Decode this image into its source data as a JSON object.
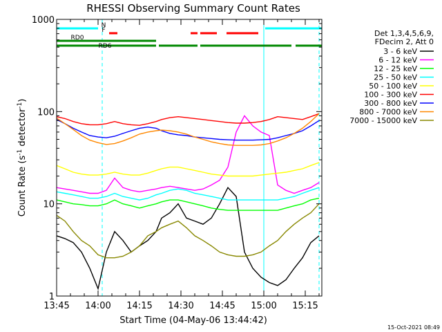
{
  "chart_data": {
    "type": "line",
    "title": "RHESSI Observing Summary Count Rates",
    "xlabel": "Start Time (04-May-06 13:44:42)",
    "ylabel": "Count Rate (s",
    "ylabel_sup": "-1",
    "ylabel_mid": " detector",
    "ylabel_sup2": "-1",
    "ylabel_end": ")",
    "x_unit": "minutes after 13:45",
    "xlim": [
      0,
      96
    ],
    "ylim": [
      1,
      1000
    ],
    "yscale": "log",
    "x_ticks": [
      {
        "v": 0,
        "label": "13:45"
      },
      {
        "v": 15,
        "label": "14:00"
      },
      {
        "v": 30,
        "label": "14:15"
      },
      {
        "v": 45,
        "label": "14:30"
      },
      {
        "v": 60,
        "label": "14:45"
      },
      {
        "v": 75,
        "label": "15:00"
      },
      {
        "v": 90,
        "label": "15:15"
      }
    ],
    "y_ticks": [
      {
        "v": 1,
        "label": "1"
      },
      {
        "v": 10,
        "label": "10"
      },
      {
        "v": 100,
        "label": "100"
      },
      {
        "v": 1000,
        "label": "1000"
      }
    ],
    "legend_title": [
      "Det 1,3,4,5,6,9,",
      "FDecim 2, Att 0"
    ],
    "legend_position": "right",
    "series": [
      {
        "name": "3 - 6 keV",
        "color": "#000000",
        "x": [
          0,
          3,
          6,
          9,
          12,
          15,
          18,
          21,
          24,
          27,
          30,
          33,
          36,
          38,
          41,
          44,
          47,
          50,
          53,
          56,
          59,
          62,
          65,
          68,
          71,
          74,
          77,
          80,
          83,
          86,
          89,
          92,
          95
        ],
        "y": [
          4.5,
          4.2,
          3.8,
          3,
          2,
          1.2,
          3,
          5,
          4,
          3,
          3.5,
          4,
          5,
          7,
          8,
          10,
          7,
          6.5,
          6,
          7,
          10,
          15,
          12,
          3,
          2,
          1.6,
          1.4,
          1.3,
          1.5,
          2,
          2.6,
          3.8,
          4.5
        ]
      },
      {
        "name": "6 - 12 keV",
        "color": "#ff00ff",
        "x": [
          0,
          3,
          6,
          9,
          12,
          15,
          18,
          21,
          24,
          27,
          30,
          33,
          36,
          38,
          41,
          44,
          47,
          50,
          53,
          56,
          59,
          62,
          65,
          68,
          71,
          74,
          77,
          80,
          83,
          86,
          89,
          92,
          95
        ],
        "y": [
          15,
          14.5,
          14,
          13.5,
          13,
          13,
          14,
          19,
          15,
          14,
          13.5,
          14,
          14.5,
          15,
          15.5,
          15,
          14.5,
          14,
          14.5,
          16,
          18,
          25,
          60,
          90,
          70,
          60,
          55,
          16,
          14,
          13,
          14,
          15,
          17
        ]
      },
      {
        "name": "12 - 25 keV",
        "color": "#00ff00",
        "x": [
          0,
          3,
          6,
          9,
          12,
          15,
          18,
          21,
          24,
          27,
          30,
          33,
          36,
          38,
          41,
          44,
          47,
          50,
          53,
          56,
          59,
          62,
          65,
          68,
          71,
          74,
          77,
          80,
          83,
          86,
          89,
          92,
          95
        ],
        "y": [
          11,
          10.5,
          10,
          9.8,
          9.5,
          9.5,
          10,
          11,
          10,
          9.5,
          9,
          9.5,
          10,
          10.5,
          11,
          11,
          10.5,
          10,
          9.5,
          9,
          8.7,
          8.5,
          8.5,
          8.5,
          8.5,
          8.5,
          8.5,
          8.5,
          9,
          9.5,
          10,
          11,
          11.5
        ]
      },
      {
        "name": "25 - 50 keV",
        "color": "#00ffff",
        "x": [
          0,
          3,
          6,
          9,
          12,
          15,
          18,
          21,
          24,
          27,
          30,
          33,
          36,
          38,
          41,
          44,
          47,
          50,
          53,
          56,
          59,
          62,
          65,
          68,
          71,
          74,
          77,
          80,
          83,
          86,
          89,
          92,
          95
        ],
        "y": [
          13.5,
          13,
          12.5,
          12,
          11.5,
          11.5,
          12,
          13,
          12,
          11.5,
          11,
          11.5,
          12.5,
          13,
          14,
          14.5,
          14,
          13,
          12.5,
          12,
          11.5,
          11,
          11,
          11,
          11,
          11,
          11,
          11,
          11.5,
          12,
          13,
          14,
          15
        ]
      },
      {
        "name": "50 - 100 keV",
        "color": "#ffff00",
        "x": [
          0,
          3,
          6,
          9,
          12,
          15,
          18,
          21,
          24,
          27,
          30,
          33,
          36,
          38,
          41,
          44,
          47,
          50,
          53,
          56,
          59,
          62,
          65,
          68,
          71,
          74,
          77,
          80,
          83,
          86,
          89,
          92,
          95
        ],
        "y": [
          26,
          24,
          22,
          21,
          20.5,
          20.5,
          21,
          22,
          21,
          20.5,
          20.5,
          21.5,
          23,
          24,
          25,
          25,
          24,
          23,
          22,
          21,
          20.5,
          20,
          20,
          20,
          20,
          20.5,
          21,
          21.5,
          22,
          23,
          24,
          26,
          28
        ]
      },
      {
        "name": "100 - 300 keV",
        "color": "#ff0000",
        "x": [
          0,
          3,
          6,
          9,
          12,
          15,
          18,
          21,
          24,
          27,
          30,
          33,
          36,
          38,
          41,
          44,
          47,
          50,
          53,
          56,
          59,
          62,
          65,
          68,
          71,
          74,
          77,
          80,
          83,
          86,
          89,
          92,
          95
        ],
        "y": [
          88,
          84,
          78,
          74,
          72,
          72,
          74,
          78,
          74,
          72,
          71,
          74,
          78,
          82,
          86,
          88,
          86,
          84,
          82,
          80,
          78,
          76,
          75,
          75,
          76,
          78,
          82,
          88,
          86,
          84,
          82,
          88,
          95
        ]
      },
      {
        "name": "300 - 800 keV",
        "color": "#0000ff",
        "x": [
          0,
          3,
          6,
          9,
          12,
          15,
          18,
          21,
          24,
          27,
          30,
          33,
          36,
          38,
          41,
          44,
          47,
          50,
          53,
          56,
          59,
          62,
          65,
          68,
          71,
          74,
          77,
          80,
          83,
          86,
          89,
          92,
          95
        ],
        "y": [
          82,
          74,
          66,
          60,
          55,
          53,
          52,
          54,
          58,
          62,
          66,
          68,
          66,
          62,
          58,
          56,
          55,
          53,
          52,
          51,
          50,
          49.5,
          49,
          49,
          49,
          49.5,
          50,
          52,
          55,
          58,
          62,
          70,
          80
        ]
      },
      {
        "name": "800 - 7000 keV",
        "color": "#ff8800",
        "x": [
          0,
          3,
          6,
          9,
          12,
          15,
          18,
          21,
          24,
          27,
          30,
          33,
          36,
          38,
          41,
          44,
          47,
          50,
          53,
          56,
          59,
          62,
          65,
          68,
          71,
          74,
          77,
          80,
          83,
          86,
          89,
          92,
          95
        ],
        "y": [
          85,
          74,
          64,
          55,
          49,
          46,
          44,
          45,
          48,
          52,
          57,
          60,
          62,
          63,
          62,
          60,
          57,
          53,
          50,
          47,
          45,
          43.5,
          43,
          43,
          43,
          43.5,
          45,
          48,
          52,
          58,
          66,
          78,
          95
        ]
      },
      {
        "name": "7000 - 15000 keV",
        "color": "#888800",
        "x": [
          0,
          3,
          6,
          9,
          12,
          15,
          18,
          21,
          24,
          27,
          30,
          33,
          36,
          38,
          41,
          44,
          47,
          50,
          53,
          56,
          59,
          62,
          65,
          68,
          71,
          74,
          77,
          80,
          83,
          86,
          89,
          92,
          95
        ],
        "y": [
          7.5,
          6.5,
          5,
          4,
          3.5,
          2.8,
          2.6,
          2.6,
          2.7,
          3,
          3.5,
          4.5,
          5,
          5.5,
          6,
          6.5,
          5.5,
          4.5,
          4,
          3.5,
          3,
          2.8,
          2.7,
          2.7,
          2.8,
          3,
          3.5,
          4,
          5,
          6,
          7,
          8,
          10
        ]
      }
    ],
    "status_bars": [
      {
        "label": "N",
        "color": "#00ffff",
        "label_x": 17,
        "segments": [
          [
            0,
            15
          ],
          [
            75.5,
            96
          ]
        ]
      },
      {
        "label": "F",
        "color": "#ff0000",
        "label_x": 17,
        "segments": [
          [
            19,
            22
          ],
          [
            48.5,
            51
          ],
          [
            52,
            58
          ],
          [
            61.5,
            73
          ]
        ]
      },
      {
        "label": "RD0",
        "color": "#008800",
        "label_x": 7.5,
        "segments": [
          [
            0,
            36
          ]
        ]
      },
      {
        "label": "RD6",
        "color": "#008800",
        "label_x": 17.5,
        "segments": [
          [
            0,
            36
          ],
          [
            37,
            51
          ],
          [
            52,
            85
          ],
          [
            86.5,
            96
          ]
        ]
      }
    ],
    "saa_lines_solid": [
      0,
      75
    ],
    "saa_lines_dashed": [
      16.5,
      95
    ]
  },
  "timestamp": "15-Oct-2021 08:49"
}
